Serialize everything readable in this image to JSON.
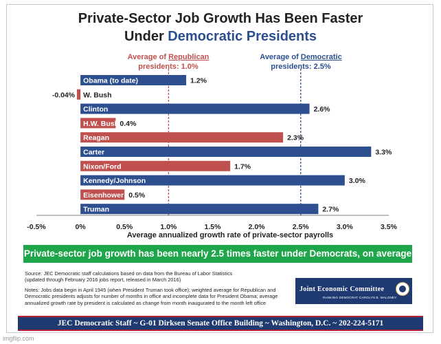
{
  "title": {
    "line1": "Private-Sector Job Growth Has Been Faster",
    "line2_prefix": "Under ",
    "line2_highlight": "Democratic Presidents"
  },
  "averages": {
    "republican": {
      "prefix": "Average of ",
      "party": "Republican",
      "suffix": "presidents: 1.0%",
      "value": 1.0
    },
    "democratic": {
      "prefix": "Average of ",
      "party": "Democratic",
      "suffix": "presidents: 2.5%",
      "value": 2.5
    }
  },
  "colors": {
    "democratic": "#2d4f8f",
    "republican": "#c0504d"
  },
  "chart_data": {
    "type": "bar",
    "orientation": "horizontal",
    "title": "Private-Sector Job Growth Has Been Faster Under Democratic Presidents",
    "xlabel": "Average annualized growth rate of private-sector payrolls",
    "xlim": [
      -0.5,
      3.5
    ],
    "xticks": [
      -0.5,
      0,
      0.5,
      1.0,
      1.5,
      2.0,
      2.5,
      3.0,
      3.5
    ],
    "xtick_labels": [
      "-0.5%",
      "0%",
      "0.5%",
      "1.0%",
      "1.5%",
      "2.0%",
      "2.5%",
      "3.0%",
      "3.5%"
    ],
    "reference_lines": [
      {
        "label": "Average of Republican presidents: 1.0%",
        "value": 1.0,
        "party": "republican"
      },
      {
        "label": "Average of Democratic presidents: 2.5%",
        "value": 2.5,
        "party": "democratic"
      }
    ],
    "bars": [
      {
        "name": "Obama (to date)",
        "value": 1.2,
        "label": "1.2%",
        "party": "democratic"
      },
      {
        "name": "W. Bush",
        "value": -0.04,
        "label": "-0.04%",
        "party": "republican"
      },
      {
        "name": "Clinton",
        "value": 2.6,
        "label": "2.6%",
        "party": "democratic"
      },
      {
        "name": "H.W. Bush",
        "value": 0.4,
        "label": "0.4%",
        "party": "republican"
      },
      {
        "name": "Reagan",
        "value": 2.3,
        "label": "2.3%",
        "party": "republican"
      },
      {
        "name": "Carter",
        "value": 3.3,
        "label": "3.3%",
        "party": "democratic"
      },
      {
        "name": "Nixon/Ford",
        "value": 1.7,
        "label": "1.7%",
        "party": "republican"
      },
      {
        "name": "Kennedy/Johnson",
        "value": 3.0,
        "label": "3.0%",
        "party": "democratic"
      },
      {
        "name": "Eisenhower",
        "value": 0.5,
        "label": "0.5%",
        "party": "republican"
      },
      {
        "name": "Truman",
        "value": 2.7,
        "label": "2.7%",
        "party": "democratic"
      }
    ]
  },
  "banner": "Private-sector job growth has been nearly 2.5 times faster under Democrats, on average",
  "source": {
    "line1": "Source: JEC Democratic staff calculations based on data from the Bureau of Labor Statistics",
    "line2": "(updated through February 2016 jobs report, released in March 2016)",
    "notes": "Notes: Jobs data begin in April 1945 (when President Truman took office); weighted average for Republican and Democratic presidents adjusts for number of months in office and incomplete data for President Obama; average annualized growth rate by president is calculated as change from month inaugurated to the month left office"
  },
  "logo": {
    "title": "Joint Economic Committee",
    "subtitle": "RANKING DEMOCRAT CAROLYN B. MALONEY"
  },
  "footer": "JEC Democratic Staff ~ G-01 Dirksen Senate Office Building ~ Washington, D.C. ~ 202-224-5171",
  "watermark": "imgflip.com"
}
